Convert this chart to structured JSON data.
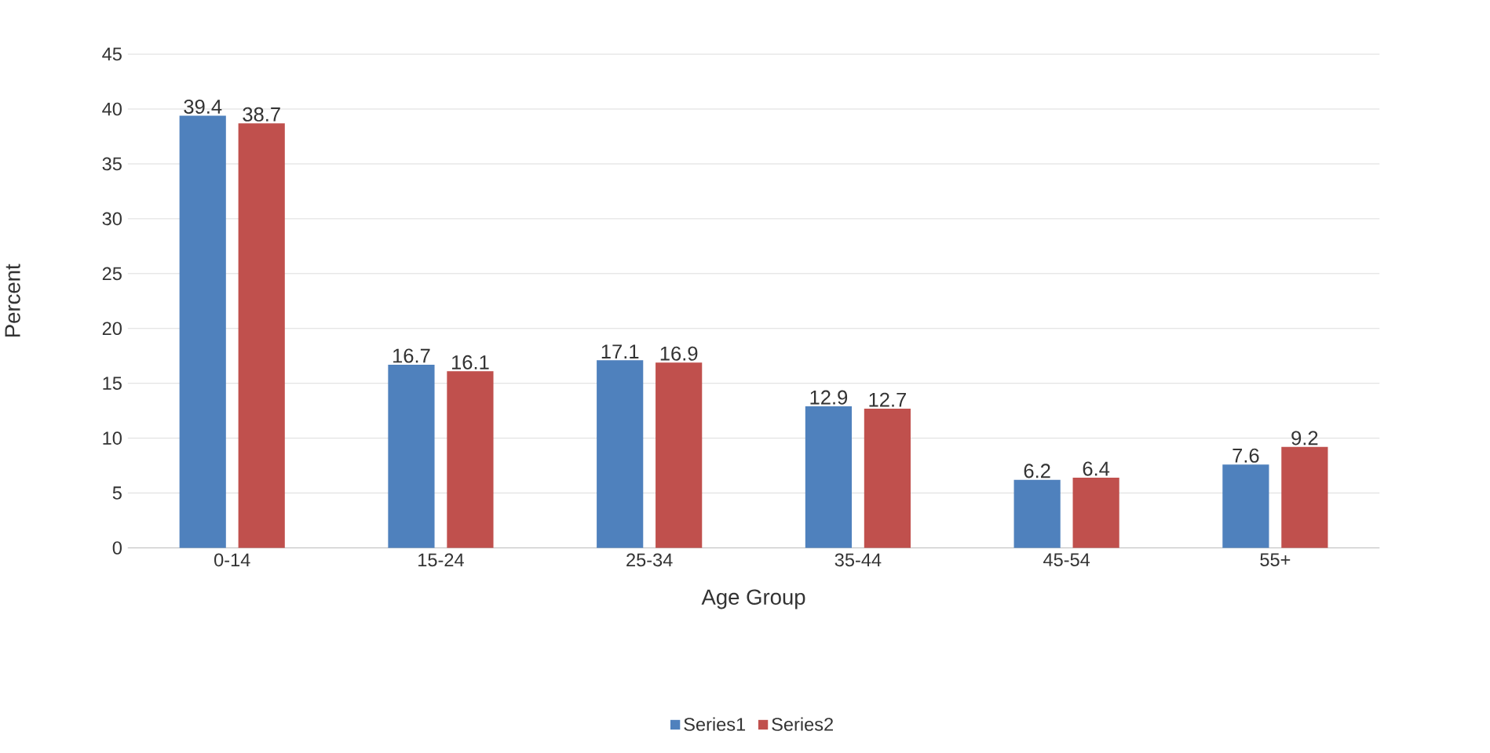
{
  "chart_data": {
    "type": "bar",
    "xlabel": "Age Group",
    "ylabel": "Percent",
    "categories": [
      "0-14",
      "15-24",
      "25-34",
      "35-44",
      "45-54",
      "55+"
    ],
    "series": [
      {
        "name": "Series1",
        "color": "#4f81bd",
        "values": [
          39.4,
          16.7,
          17.1,
          12.9,
          6.2,
          7.6
        ]
      },
      {
        "name": "Series2",
        "color": "#c0504d",
        "values": [
          38.7,
          16.1,
          16.9,
          12.7,
          6.4,
          9.2
        ]
      }
    ],
    "ylim": [
      0,
      45
    ],
    "yticks": [
      0,
      5,
      10,
      15,
      20,
      25,
      30,
      35,
      40,
      45
    ],
    "grid": "y",
    "legend": "bottom",
    "data_labels": true
  }
}
